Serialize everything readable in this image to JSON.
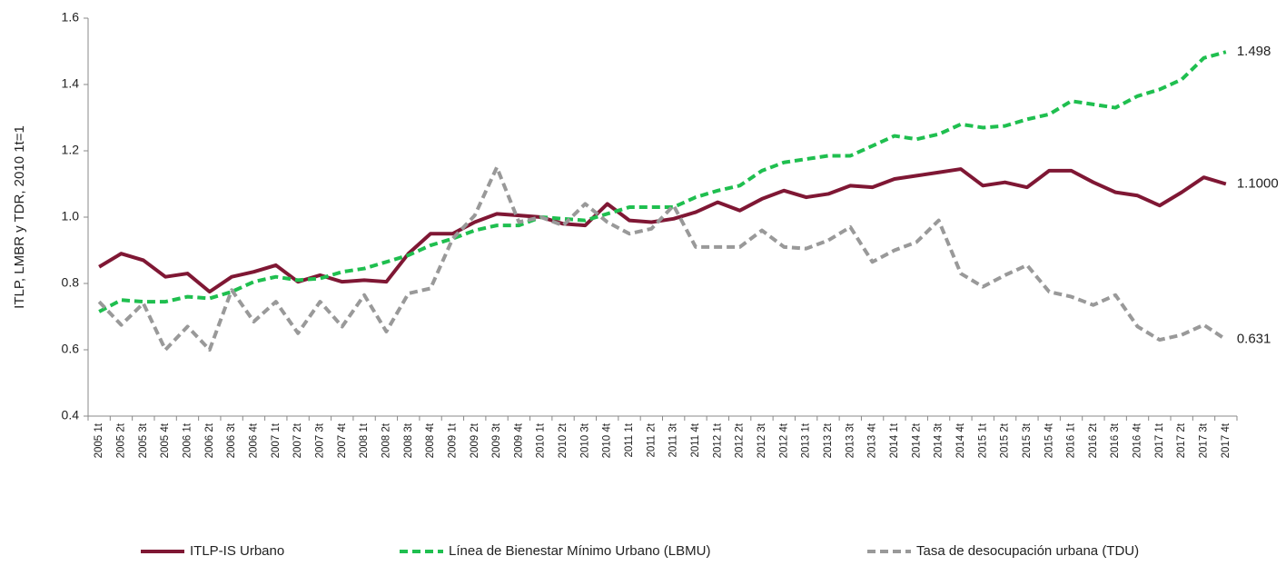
{
  "chart_data": {
    "type": "line",
    "y_label": "ITLP, LMBR y TDR, 2010 1t=1",
    "categories": [
      "2005 1t",
      "2005 2t",
      "2005 3t",
      "2005 4t",
      "2006 1t",
      "2006 2t",
      "2006 3t",
      "2006 4t",
      "2007 1t",
      "2007 2t",
      "2007 3t",
      "2007 4t",
      "2008 1t",
      "2008 2t",
      "2008 3t",
      "2008 4t",
      "2009 1t",
      "2009 2t",
      "2009 3t",
      "2009 4t",
      "2010 1t",
      "2010 2t",
      "2010 3t",
      "2010 4t",
      "2011 1t",
      "2011 2t",
      "2011 3t",
      "2011 4t",
      "2012 1t",
      "2012 2t",
      "2012 3t",
      "2012 4t",
      "2013 1t",
      "2013 2t",
      "2013 3t",
      "2013 4t",
      "2014 1t",
      "2014 2t",
      "2014 3t",
      "2014 4t",
      "2015 1t",
      "2015 2t",
      "2015 3t",
      "2015 4t",
      "2016 1t",
      "2016 2t",
      "2016 3t",
      "2016 4t",
      "2017 1t",
      "2017 2t",
      "2017 3t",
      "2017 4t"
    ],
    "series": [
      {
        "name": "ITLP-IS Urbano",
        "color": "#7f1734",
        "dash": "solid",
        "values": [
          0.85,
          0.89,
          0.87,
          0.82,
          0.83,
          0.775,
          0.82,
          0.835,
          0.855,
          0.805,
          0.825,
          0.805,
          0.81,
          0.805,
          0.89,
          0.95,
          0.95,
          0.985,
          1.01,
          1.005,
          1.0,
          0.98,
          0.975,
          1.04,
          0.99,
          0.985,
          0.995,
          1.015,
          1.045,
          1.02,
          1.055,
          1.08,
          1.06,
          1.07,
          1.095,
          1.09,
          1.115,
          1.125,
          1.135,
          1.145,
          1.095,
          1.105,
          1.09,
          1.14,
          1.14,
          1.105,
          1.075,
          1.065,
          1.035,
          1.075,
          1.12,
          1.1
        ],
        "value_labels": [
          null,
          null,
          null,
          null,
          null,
          null,
          null,
          null,
          null,
          null,
          null,
          null,
          null,
          null,
          null,
          null,
          null,
          null,
          null,
          null,
          null,
          null,
          null,
          null,
          null,
          null,
          null,
          null,
          null,
          null,
          null,
          null,
          null,
          null,
          null,
          null,
          null,
          null,
          null,
          null,
          null,
          null,
          null,
          null,
          null,
          null,
          null,
          null,
          null,
          null,
          null,
          "1.1000"
        ]
      },
      {
        "name": "Línea de Bienestar Mínimo Urbano (LBMU)",
        "color": "#1fbf4f",
        "dash": "dashed",
        "values": [
          0.715,
          0.75,
          0.745,
          0.745,
          0.76,
          0.755,
          0.775,
          0.805,
          0.82,
          0.81,
          0.815,
          0.835,
          0.845,
          0.865,
          0.885,
          0.915,
          0.935,
          0.96,
          0.975,
          0.975,
          1.0,
          0.995,
          0.99,
          1.01,
          1.03,
          1.03,
          1.03,
          1.06,
          1.08,
          1.095,
          1.14,
          1.165,
          1.175,
          1.185,
          1.185,
          1.215,
          1.245,
          1.235,
          1.25,
          1.28,
          1.27,
          1.275,
          1.295,
          1.31,
          1.35,
          1.34,
          1.33,
          1.365,
          1.385,
          1.415,
          1.48,
          1.498
        ],
        "value_labels": [
          null,
          null,
          null,
          null,
          null,
          null,
          null,
          null,
          null,
          null,
          null,
          null,
          null,
          null,
          null,
          null,
          null,
          null,
          null,
          null,
          null,
          null,
          null,
          null,
          null,
          null,
          null,
          null,
          null,
          null,
          null,
          null,
          null,
          null,
          null,
          null,
          null,
          null,
          null,
          null,
          null,
          null,
          null,
          null,
          null,
          null,
          null,
          null,
          null,
          null,
          null,
          "1.498"
        ]
      },
      {
        "name": "Tasa de desocupación urbana (TDU)",
        "color": "#999999",
        "dash": "dashed",
        "values": [
          0.745,
          0.675,
          0.74,
          0.6,
          0.67,
          0.6,
          0.78,
          0.685,
          0.745,
          0.65,
          0.745,
          0.67,
          0.765,
          0.655,
          0.77,
          0.785,
          0.935,
          1.005,
          1.15,
          0.985,
          1.0,
          0.975,
          1.04,
          0.985,
          0.95,
          0.965,
          1.035,
          0.91,
          0.91,
          0.91,
          0.96,
          0.91,
          0.905,
          0.93,
          0.97,
          0.865,
          0.9,
          0.925,
          0.99,
          0.83,
          0.79,
          0.825,
          0.855,
          0.775,
          0.76,
          0.735,
          0.765,
          0.67,
          0.63,
          0.645,
          0.675,
          0.631
        ],
        "value_labels": [
          null,
          null,
          null,
          null,
          null,
          null,
          null,
          null,
          null,
          null,
          null,
          null,
          null,
          null,
          null,
          null,
          null,
          null,
          null,
          null,
          null,
          null,
          null,
          null,
          null,
          null,
          null,
          null,
          null,
          null,
          null,
          null,
          null,
          null,
          null,
          null,
          null,
          null,
          null,
          null,
          null,
          null,
          null,
          null,
          null,
          null,
          null,
          null,
          null,
          null,
          null,
          "0.631"
        ]
      }
    ],
    "ylim": [
      0.4,
      1.6
    ],
    "yticks": [
      0.4,
      0.6,
      0.8,
      {
        "value": 1,
        "label": "1.0"
      },
      1.2,
      1.4,
      1.6
    ],
    "grid": false,
    "legend": "bottom"
  }
}
